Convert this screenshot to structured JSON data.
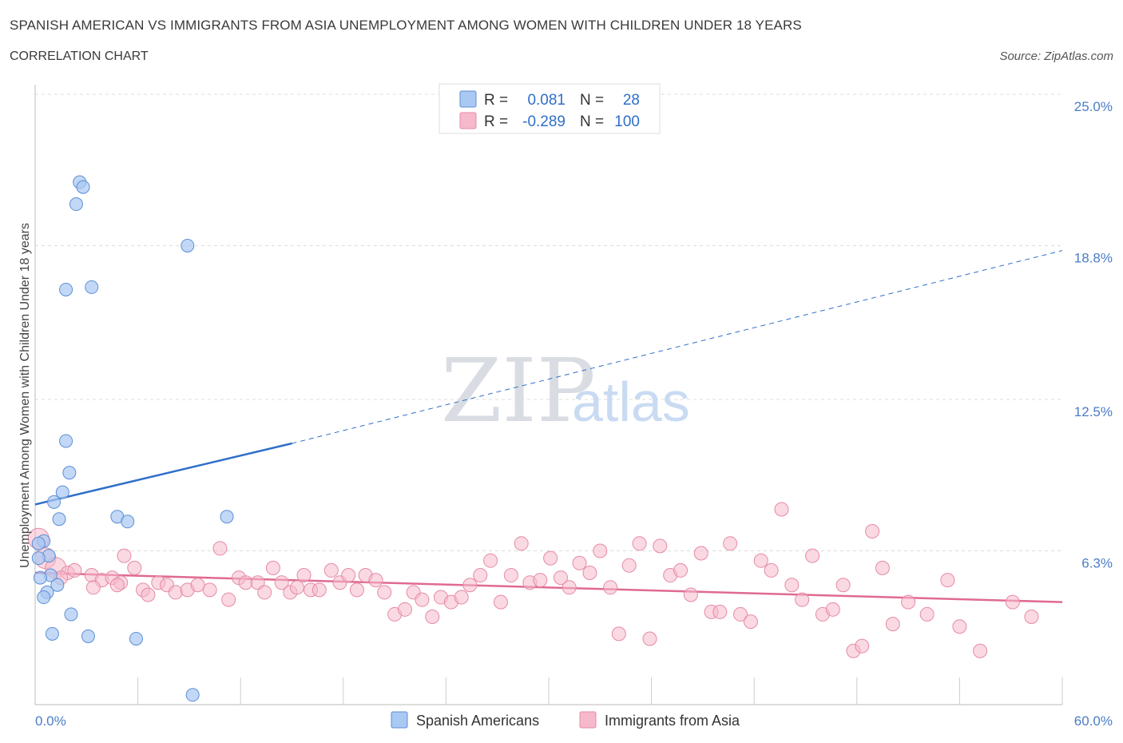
{
  "header": {
    "title": "SPANISH AMERICAN VS IMMIGRANTS FROM ASIA UNEMPLOYMENT AMONG WOMEN WITH CHILDREN UNDER 18 YEARS",
    "subtitle": "CORRELATION CHART",
    "source": "Source: ZipAtlas.com"
  },
  "watermark": {
    "zip": "ZIP",
    "atlas": "atlas"
  },
  "legend": {
    "r_label": "R =",
    "n_label": "N =",
    "rows": [
      {
        "r": "0.081",
        "n": "28"
      },
      {
        "r": "-0.289",
        "n": "100"
      }
    ]
  },
  "colors": {
    "blue_fill": "#a9c8f2",
    "blue_stroke": "#5b8fd6",
    "blue_line": "#2f6fc9",
    "pink_fill": "#f5b9cb",
    "pink_stroke": "#e68aa6",
    "pink_line": "#e06a92",
    "grid": "#dcdcdc",
    "axis_text": "#4a7cc7"
  },
  "chart_data": {
    "type": "scatter",
    "title": "SPANISH AMERICAN VS IMMIGRANTS FROM ASIA UNEMPLOYMENT AMONG WOMEN WITH CHILDREN UNDER 18 YEARS",
    "xlabel": "",
    "ylabel": "Unemployment Among Women with Children Under 18 years",
    "xlim": [
      0,
      60
    ],
    "ylim": [
      0,
      25
    ],
    "x_tick_labels": [
      "0.0%",
      "60.0%"
    ],
    "y_ticks": [
      6.3,
      12.5,
      18.8,
      25.0
    ],
    "y_tick_labels": [
      "6.3%",
      "12.5%",
      "18.8%",
      "25.0%"
    ],
    "grid": true,
    "legend_position": "top-center",
    "series": [
      {
        "name": "Spanish Americans",
        "color": "#a9c8f2",
        "trend": {
          "x": [
            0,
            15
          ],
          "y": [
            8.2,
            10.7
          ],
          "extended_to": [
            60,
            18.6
          ]
        },
        "points": [
          [
            2.6,
            21.4
          ],
          [
            2.8,
            21.2
          ],
          [
            2.4,
            20.5
          ],
          [
            8.9,
            18.8
          ],
          [
            3.3,
            17.1
          ],
          [
            1.8,
            17.0
          ],
          [
            1.8,
            10.8
          ],
          [
            2.0,
            9.5
          ],
          [
            1.6,
            8.7
          ],
          [
            1.1,
            8.3
          ],
          [
            1.4,
            7.6
          ],
          [
            4.8,
            7.7
          ],
          [
            5.4,
            7.5
          ],
          [
            11.2,
            7.7
          ],
          [
            0.5,
            6.7
          ],
          [
            0.2,
            6.6
          ],
          [
            0.8,
            6.1
          ],
          [
            0.9,
            5.3
          ],
          [
            0.3,
            5.2
          ],
          [
            1.3,
            4.9
          ],
          [
            0.7,
            4.6
          ],
          [
            0.5,
            4.4
          ],
          [
            2.1,
            3.7
          ],
          [
            1.0,
            2.9
          ],
          [
            3.1,
            2.8
          ],
          [
            5.9,
            2.7
          ],
          [
            9.2,
            0.4
          ],
          [
            0.2,
            6.0
          ]
        ]
      },
      {
        "name": "Immigrants from Asia",
        "color": "#f5b9cb",
        "trend": {
          "x": [
            0,
            60
          ],
          "y": [
            5.4,
            4.2
          ]
        },
        "points": [
          [
            0.2,
            6.8
          ],
          [
            0.6,
            6.0
          ],
          [
            1.2,
            5.6
          ],
          [
            1.9,
            5.4
          ],
          [
            2.3,
            5.5
          ],
          [
            3.3,
            5.3
          ],
          [
            3.9,
            5.1
          ],
          [
            4.5,
            5.2
          ],
          [
            5.0,
            5.0
          ],
          [
            4.8,
            4.9
          ],
          [
            3.4,
            4.8
          ],
          [
            5.2,
            6.1
          ],
          [
            5.8,
            5.6
          ],
          [
            6.3,
            4.7
          ],
          [
            6.6,
            4.5
          ],
          [
            7.2,
            5.0
          ],
          [
            7.7,
            4.9
          ],
          [
            8.2,
            4.6
          ],
          [
            8.9,
            4.7
          ],
          [
            9.5,
            4.9
          ],
          [
            10.2,
            4.7
          ],
          [
            10.8,
            6.4
          ],
          [
            11.3,
            4.3
          ],
          [
            11.9,
            5.2
          ],
          [
            12.3,
            5.0
          ],
          [
            13.0,
            5.0
          ],
          [
            13.4,
            4.6
          ],
          [
            13.9,
            5.6
          ],
          [
            14.4,
            5.0
          ],
          [
            14.9,
            4.6
          ],
          [
            15.3,
            4.8
          ],
          [
            15.7,
            5.3
          ],
          [
            16.1,
            4.7
          ],
          [
            16.6,
            4.7
          ],
          [
            17.3,
            5.5
          ],
          [
            17.8,
            5.0
          ],
          [
            18.3,
            5.3
          ],
          [
            18.8,
            4.7
          ],
          [
            19.3,
            5.3
          ],
          [
            19.9,
            5.1
          ],
          [
            20.4,
            4.6
          ],
          [
            21.0,
            3.7
          ],
          [
            21.6,
            3.9
          ],
          [
            22.1,
            4.6
          ],
          [
            22.6,
            4.3
          ],
          [
            23.2,
            3.6
          ],
          [
            23.7,
            4.4
          ],
          [
            24.3,
            4.2
          ],
          [
            24.9,
            4.4
          ],
          [
            25.4,
            4.9
          ],
          [
            26.0,
            5.3
          ],
          [
            26.6,
            5.9
          ],
          [
            27.2,
            4.2
          ],
          [
            27.8,
            5.3
          ],
          [
            28.4,
            6.6
          ],
          [
            28.9,
            5.0
          ],
          [
            29.5,
            5.1
          ],
          [
            30.1,
            6.0
          ],
          [
            30.7,
            5.2
          ],
          [
            31.2,
            4.8
          ],
          [
            31.8,
            5.8
          ],
          [
            32.4,
            5.4
          ],
          [
            33.0,
            6.3
          ],
          [
            33.6,
            4.8
          ],
          [
            34.1,
            2.9
          ],
          [
            34.7,
            5.7
          ],
          [
            35.3,
            6.6
          ],
          [
            35.9,
            2.7
          ],
          [
            36.5,
            6.5
          ],
          [
            37.1,
            5.3
          ],
          [
            37.7,
            5.5
          ],
          [
            38.3,
            4.5
          ],
          [
            38.9,
            6.2
          ],
          [
            39.5,
            3.8
          ],
          [
            40.0,
            3.8
          ],
          [
            40.6,
            6.6
          ],
          [
            41.2,
            3.7
          ],
          [
            41.8,
            3.4
          ],
          [
            42.4,
            5.9
          ],
          [
            43.0,
            5.5
          ],
          [
            43.6,
            8.0
          ],
          [
            44.2,
            4.9
          ],
          [
            44.8,
            4.3
          ],
          [
            45.4,
            6.1
          ],
          [
            46.0,
            3.7
          ],
          [
            46.6,
            3.9
          ],
          [
            47.2,
            4.9
          ],
          [
            47.8,
            2.2
          ],
          [
            48.3,
            2.4
          ],
          [
            48.9,
            7.1
          ],
          [
            49.5,
            5.6
          ],
          [
            50.1,
            3.3
          ],
          [
            51.0,
            4.2
          ],
          [
            52.1,
            3.7
          ],
          [
            53.3,
            5.1
          ],
          [
            54.0,
            3.2
          ],
          [
            55.2,
            2.2
          ],
          [
            57.1,
            4.2
          ],
          [
            58.2,
            3.6
          ],
          [
            1.5,
            5.2
          ]
        ]
      }
    ]
  },
  "bottom_legend": [
    "Spanish Americans",
    "Immigrants from Asia"
  ]
}
